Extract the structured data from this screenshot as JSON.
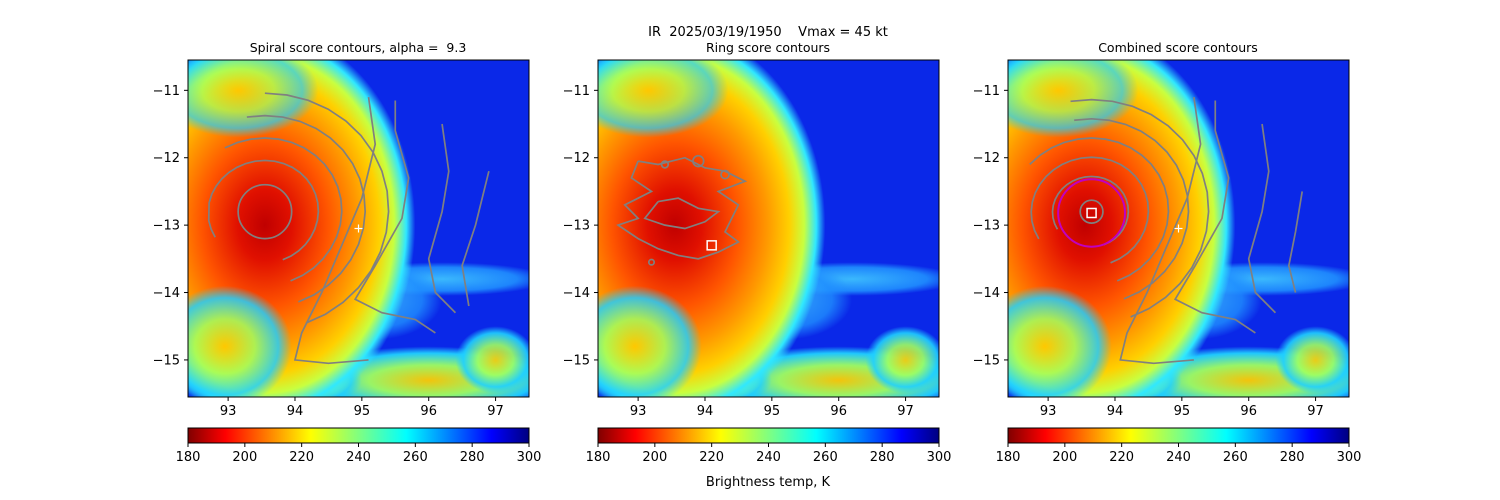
{
  "suptitle": {
    "line1": "IR  2025/03/19/1950    Vmax = 45 kt"
  },
  "colorbar_label": "Brightness temp, K",
  "colors": {
    "contour": "#808080",
    "circle": "#c000c0",
    "marker": "#ffffff"
  },
  "chart_data": [
    {
      "type": "heatmap",
      "title": "Spiral score contours, alpha =  9.3",
      "xlim": [
        92.4,
        97.5
      ],
      "ylim": [
        -15.55,
        -10.55
      ],
      "xticks": [
        93,
        94,
        95,
        96,
        97
      ],
      "xtick_labels": [
        "93",
        "94",
        "95",
        "96",
        "97"
      ],
      "yticks": [
        -11,
        -12,
        -13,
        -14,
        -15
      ],
      "ytick_labels": [
        "−11",
        "−12",
        "−13",
        "−14",
        "−15"
      ],
      "colorbar": {
        "min": 180,
        "max": 300,
        "ticks": [
          "180",
          "200",
          "220",
          "240",
          "260",
          "280",
          "300"
        ]
      },
      "eye_center": {
        "lon": 93.55,
        "lat": -12.8
      },
      "cold_edge_lon": 94.6,
      "marker": {
        "type": "plus",
        "lon": 94.95,
        "lat": -13.05
      },
      "square": null,
      "circle": null,
      "contours": "spiral"
    },
    {
      "type": "heatmap",
      "title": "Ring score contours",
      "xlim": [
        92.4,
        97.5
      ],
      "ylim": [
        -15.55,
        -10.55
      ],
      "xticks": [
        93,
        94,
        95,
        96,
        97
      ],
      "xtick_labels": [
        "93",
        "94",
        "95",
        "96",
        "97"
      ],
      "yticks": [
        -11,
        -12,
        -13,
        -14,
        -15
      ],
      "ytick_labels": [
        "−11",
        "−12",
        "−13",
        "−14",
        "−15"
      ],
      "colorbar": {
        "min": 180,
        "max": 300,
        "ticks": [
          "180",
          "200",
          "220",
          "240",
          "260",
          "280",
          "300"
        ]
      },
      "eye_center": {
        "lon": 93.55,
        "lat": -12.8
      },
      "cold_edge_lon": 94.6,
      "marker": null,
      "square": {
        "lon": 94.1,
        "lat": -13.3
      },
      "circle": null,
      "contours": "ring"
    },
    {
      "type": "heatmap",
      "title": "Combined score contours",
      "xlim": [
        92.4,
        97.5
      ],
      "ylim": [
        -15.55,
        -10.55
      ],
      "xticks": [
        93,
        94,
        95,
        96,
        97
      ],
      "xtick_labels": [
        "93",
        "94",
        "95",
        "96",
        "97"
      ],
      "yticks": [
        -11,
        -12,
        -13,
        -14,
        -15
      ],
      "ytick_labels": [
        "−11",
        "−12",
        "−13",
        "−14",
        "−15"
      ],
      "colorbar": {
        "min": 180,
        "max": 300,
        "ticks": [
          "180",
          "200",
          "220",
          "240",
          "260",
          "280",
          "300"
        ]
      },
      "eye_center": {
        "lon": 93.55,
        "lat": -12.8
      },
      "cold_edge_lon": 94.6,
      "marker": {
        "type": "plus",
        "lon": 94.95,
        "lat": -13.05
      },
      "square": {
        "lon": 93.65,
        "lat": -12.82
      },
      "circle": {
        "lon": 93.65,
        "lat": -12.82,
        "radius_deg": 0.5
      },
      "contours": "combined"
    }
  ]
}
